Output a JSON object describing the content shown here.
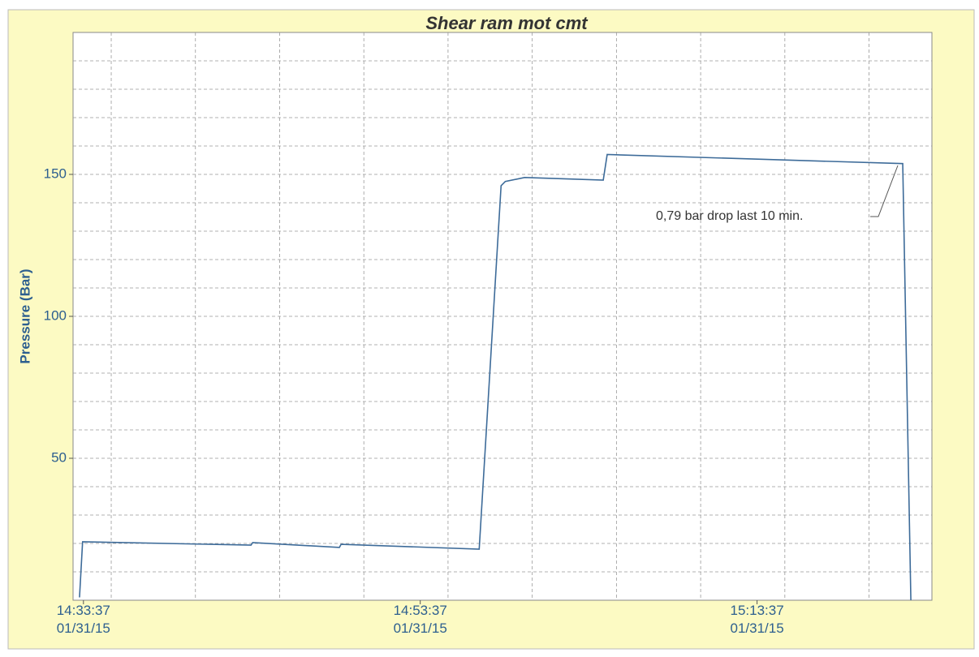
{
  "chart_data": {
    "type": "line",
    "title": "Shear ram mot cmt",
    "y_label": "Pressure (Bar)",
    "annotation": "0,79 bar drop last 10 min.",
    "color": "#3d6b99",
    "x": [
      "2015-01-31T14:33:23",
      "2015-01-31T14:33:34",
      "2015-01-31T14:43:34",
      "2015-01-31T14:43:40",
      "2015-01-31T14:48:49",
      "2015-01-31T14:48:55",
      "2015-01-31T14:57:07",
      "2015-01-31T14:58:25",
      "2015-01-31T14:58:40",
      "2015-01-31T14:59:49",
      "2015-01-31T15:04:29",
      "2015-01-31T15:04:43",
      "2015-01-31T15:22:16",
      "2015-01-31T15:22:45"
    ],
    "values": [
      1,
      20.6,
      19.4,
      20.3,
      18.6,
      19.7,
      18,
      146,
      147.5,
      148.9,
      148,
      157,
      153.8,
      0
    ],
    "xlim": [
      "2015-01-31T14:33:00",
      "2015-01-31T15:24:00"
    ],
    "xticks": [
      {
        "value": "2015-01-31T14:33:37",
        "label": "14:33:37\n01/31/15"
      },
      {
        "value": "2015-01-31T14:53:37",
        "label": "14:53:37\n01/31/15"
      },
      {
        "value": "2015-01-31T15:13:37",
        "label": "15:13:37\n01/31/15"
      }
    ],
    "x_grid": [
      "2015-01-31T14:35:16",
      "2015-01-31T14:40:16",
      "2015-01-31T14:45:16",
      "2015-01-31T14:50:16",
      "2015-01-31T14:55:16",
      "2015-01-31T15:00:16",
      "2015-01-31T15:05:16",
      "2015-01-31T15:10:16",
      "2015-01-31T15:15:16",
      "2015-01-31T15:20:16"
    ],
    "ylim": [
      0,
      200
    ],
    "yticks": [
      50,
      100,
      150
    ],
    "y_grid": [
      10,
      20,
      30,
      40,
      50,
      60,
      70,
      80,
      90,
      100,
      110,
      120,
      130,
      140,
      150,
      160,
      170,
      180,
      190
    ],
    "grid": true
  }
}
